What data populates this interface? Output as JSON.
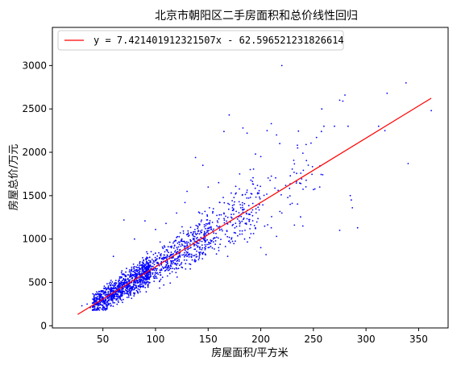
{
  "chart_data": {
    "type": "scatter",
    "title": "北京市朝阳区二手房面积和总价线性回归",
    "xlabel": "房屋面积/平方米",
    "ylabel": "房屋总价/万元",
    "xlim": [
      2,
      378
    ],
    "ylim": [
      -25,
      3440
    ],
    "x_ticks": [
      50,
      100,
      150,
      200,
      250,
      300,
      350
    ],
    "y_ticks": [
      0,
      500,
      1000,
      1500,
      2000,
      2500,
      3000
    ],
    "grid": false,
    "legend_position": "top-left",
    "colors": {
      "points": "#0000ff",
      "fit_line": "#ff0000"
    },
    "regression": {
      "label": "y = 7.421401912321507x - 62.596521231826614",
      "slope": 7.421401912321507,
      "intercept": -62.596521231826614,
      "x_range": [
        26,
        362
      ]
    },
    "scatter_series": {
      "name": "",
      "points": [
        [
          220,
          3000
        ],
        [
          338,
          2800
        ],
        [
          320,
          2680
        ],
        [
          280,
          2660
        ],
        [
          362,
          2480
        ],
        [
          275,
          2600
        ],
        [
          278,
          2590
        ],
        [
          258,
          2500
        ],
        [
          312,
          2300
        ],
        [
          318,
          2250
        ],
        [
          270,
          2300
        ],
        [
          283,
          2300
        ],
        [
          260,
          2300
        ],
        [
          206,
          2250
        ],
        [
          215,
          2200
        ],
        [
          210,
          2330
        ],
        [
          218,
          2100
        ],
        [
          235,
          2050
        ],
        [
          240,
          1990
        ],
        [
          238,
          1640
        ],
        [
          250,
          1570
        ],
        [
          256,
          1600
        ],
        [
          340,
          1870
        ],
        [
          285,
          1500
        ],
        [
          287,
          1360
        ],
        [
          286,
          1450
        ],
        [
          292,
          1130
        ],
        [
          275,
          1100
        ],
        [
          232,
          1160
        ],
        [
          240,
          1150
        ],
        [
          210,
          1130
        ],
        [
          220,
          1300
        ],
        [
          215,
          1030
        ],
        [
          228,
          1400
        ],
        [
          170,
          2430
        ],
        [
          165,
          2240
        ],
        [
          183,
          2280
        ],
        [
          187,
          2220
        ],
        [
          195,
          1980
        ],
        [
          200,
          1950
        ],
        [
          190,
          1800
        ],
        [
          180,
          1750
        ],
        [
          176,
          1520
        ],
        [
          170,
          1400
        ],
        [
          160,
          1650
        ],
        [
          145,
          1850
        ],
        [
          138,
          1940
        ],
        [
          150,
          1600
        ],
        [
          130,
          1550
        ],
        [
          128,
          1420
        ],
        [
          120,
          1300
        ],
        [
          110,
          1180
        ],
        [
          100,
          1110
        ],
        [
          90,
          1210
        ],
        [
          70,
          1220
        ],
        [
          80,
          1000
        ],
        [
          60,
          800
        ],
        [
          75,
          520
        ],
        [
          55,
          380
        ],
        [
          45,
          310
        ],
        [
          35,
          250
        ],
        [
          100,
          760
        ],
        [
          110,
          680
        ],
        [
          118,
          920
        ],
        [
          125,
          1000
        ],
        [
          135,
          1050
        ],
        [
          140,
          1150
        ],
        [
          142,
          1300
        ],
        [
          155,
          1350
        ],
        [
          165,
          1300
        ],
        [
          178,
          1230
        ],
        [
          180,
          1150
        ],
        [
          185,
          1100
        ],
        [
          195,
          1120
        ],
        [
          200,
          900
        ],
        [
          205,
          820
        ],
        [
          150,
          900
        ],
        [
          160,
          900
        ],
        [
          130,
          800
        ],
        [
          120,
          700
        ],
        [
          95,
          620
        ],
        [
          85,
          590
        ],
        [
          65,
          470
        ],
        [
          58,
          420
        ],
        [
          48,
          360
        ],
        [
          42,
          290
        ],
        [
          38,
          210
        ],
        [
          30,
          230
        ]
      ]
    }
  }
}
